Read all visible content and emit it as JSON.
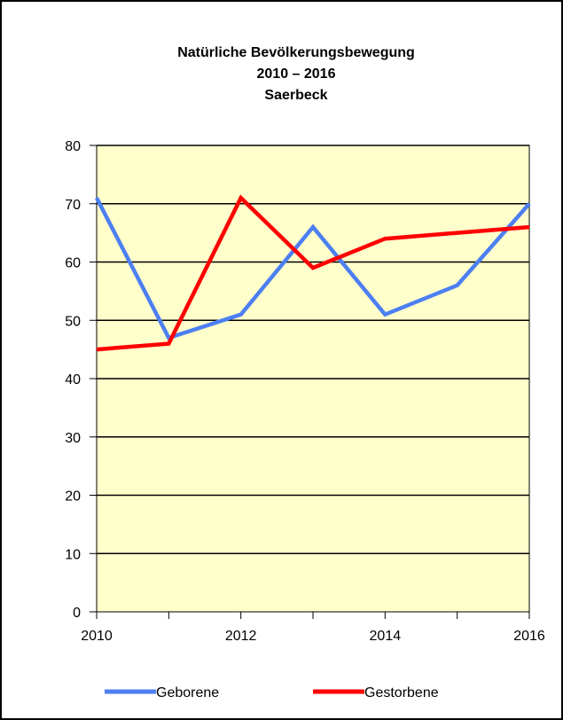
{
  "chart_data": {
    "type": "line",
    "title_lines": [
      "Natürliche Bevölkerungsbewegung",
      "2010 – 2016",
      "Saerbeck"
    ],
    "x": [
      2010,
      2011,
      2012,
      2013,
      2014,
      2015,
      2016
    ],
    "x_tick_labels": [
      "2010",
      "2012",
      "2014",
      "2016"
    ],
    "x_tick_values": [
      2010,
      2012,
      2014,
      2016
    ],
    "xlim": [
      2010,
      2016
    ],
    "ylim": [
      0,
      80
    ],
    "y_ticks": [
      0,
      10,
      20,
      30,
      40,
      50,
      60,
      70,
      80
    ],
    "grid": true,
    "legend_position": "bottom",
    "plot_background": "#FFFFCC",
    "series": [
      {
        "name": "Geborene",
        "color": "#4D7FF2",
        "values": [
          71,
          47,
          51,
          66,
          51,
          56,
          70
        ]
      },
      {
        "name": "Gestorbene",
        "color": "#FF0000",
        "values": [
          45,
          46,
          71,
          59,
          64,
          65,
          66
        ]
      }
    ]
  }
}
